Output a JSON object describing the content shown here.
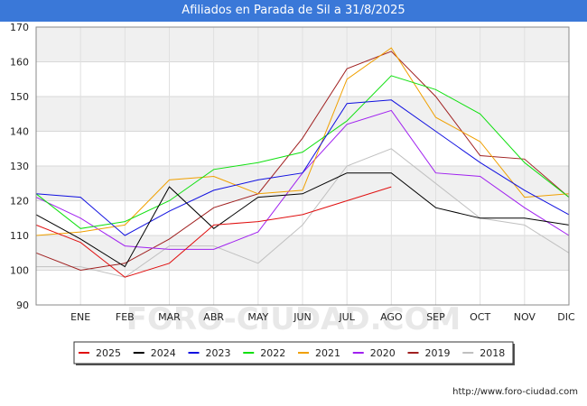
{
  "title": "Afiliados en Parada de Sil a 31/8/2025",
  "watermark": "FORO-CIUDAD.COM",
  "source_url": "http://www.foro-ciudad.com",
  "chart_data": {
    "type": "line",
    "title": "Afiliados en Parada de Sil a 31/8/2025",
    "categories": [
      "",
      "ENE",
      "FEB",
      "MAR",
      "ABR",
      "MAY",
      "JUN",
      "JUL",
      "AGO",
      "SEP",
      "OCT",
      "NOV",
      "DIC"
    ],
    "ylim": [
      90,
      170
    ],
    "yticks": [
      90,
      100,
      110,
      120,
      130,
      140,
      150,
      160,
      170
    ],
    "grid": true,
    "legend_position": "bottom",
    "series": [
      {
        "name": "2025",
        "color": "#e01010",
        "values": [
          113,
          108,
          98,
          102,
          113,
          114,
          116,
          120,
          124,
          null,
          null,
          null,
          null
        ]
      },
      {
        "name": "2024",
        "color": "#000000",
        "values": [
          116,
          109,
          101,
          124,
          112,
          121,
          122,
          128,
          128,
          118,
          115,
          115,
          113
        ]
      },
      {
        "name": "2023",
        "color": "#1010e0",
        "values": [
          122,
          121,
          110,
          117,
          123,
          126,
          128,
          148,
          149,
          140,
          131,
          123,
          116
        ]
      },
      {
        "name": "2022",
        "color": "#10e010",
        "values": [
          122,
          112,
          114,
          120,
          129,
          131,
          134,
          143,
          156,
          152,
          145,
          131,
          121
        ]
      },
      {
        "name": "2021",
        "color": "#f0a000",
        "values": [
          110,
          111,
          113,
          126,
          127,
          122,
          123,
          155,
          164,
          144,
          137,
          121,
          122
        ]
      },
      {
        "name": "2020",
        "color": "#a020f0",
        "values": [
          121,
          115,
          107,
          106,
          106,
          111,
          128,
          142,
          146,
          128,
          127,
          118,
          110
        ]
      },
      {
        "name": "2019",
        "color": "#a02020",
        "values": [
          105,
          100,
          102,
          109,
          118,
          122,
          138,
          158,
          163,
          150,
          133,
          132,
          121
        ]
      },
      {
        "name": "2018",
        "color": "#c0c0c0",
        "values": [
          101,
          101,
          98,
          107,
          107,
          102,
          113,
          130,
          135,
          125,
          115,
          113,
          105
        ]
      }
    ]
  }
}
